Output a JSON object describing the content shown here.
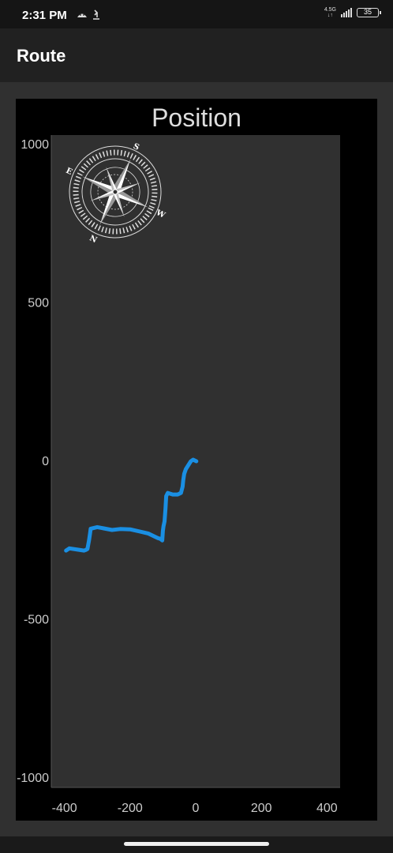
{
  "status_bar": {
    "time": "2:31 PM",
    "network": "4.5G",
    "battery": "35"
  },
  "app_bar": {
    "title": "Route"
  },
  "compass": {
    "labels": [
      "S",
      "W",
      "N",
      "E"
    ]
  },
  "chart_data": {
    "type": "line",
    "title": "Position",
    "xlabel": "",
    "ylabel": "",
    "xlim": [
      -440,
      440
    ],
    "ylim": [
      -1030,
      1030
    ],
    "x_ticks": [
      "-400",
      "-200",
      "0",
      "200",
      "400"
    ],
    "x_tick_values": [
      -400,
      -200,
      0,
      200,
      400
    ],
    "y_ticks": [
      "1000",
      "500",
      "0",
      "-500",
      "-1000"
    ],
    "y_tick_values": [
      1000,
      500,
      0,
      -500,
      -1000
    ],
    "grid": false,
    "series": [
      {
        "color": "#1a8fe3",
        "x": [
          2,
          -8,
          -15,
          -30,
          -35,
          -38,
          -40,
          -45,
          -55,
          -70,
          -85,
          -90,
          -92,
          -95,
          -98,
          -100,
          -102,
          -108,
          -115,
          -125,
          -145,
          -170,
          -200,
          -230,
          -255,
          -280,
          -300,
          -320,
          -322,
          -325,
          -330,
          -335,
          -340,
          -360,
          -385,
          -395
        ],
        "y": [
          0,
          5,
          0,
          -25,
          -40,
          -60,
          -80,
          -100,
          -105,
          -105,
          -100,
          -110,
          -150,
          -190,
          -205,
          -220,
          -250,
          -245,
          -243,
          -238,
          -228,
          -222,
          -215,
          -214,
          -217,
          -212,
          -208,
          -213,
          -228,
          -250,
          -277,
          -280,
          -282,
          -279,
          -275,
          -282
        ]
      }
    ]
  },
  "colors": {
    "plot_background": "#303030",
    "axis_text": "#cccccc",
    "route_line": "#1a8fe3"
  }
}
